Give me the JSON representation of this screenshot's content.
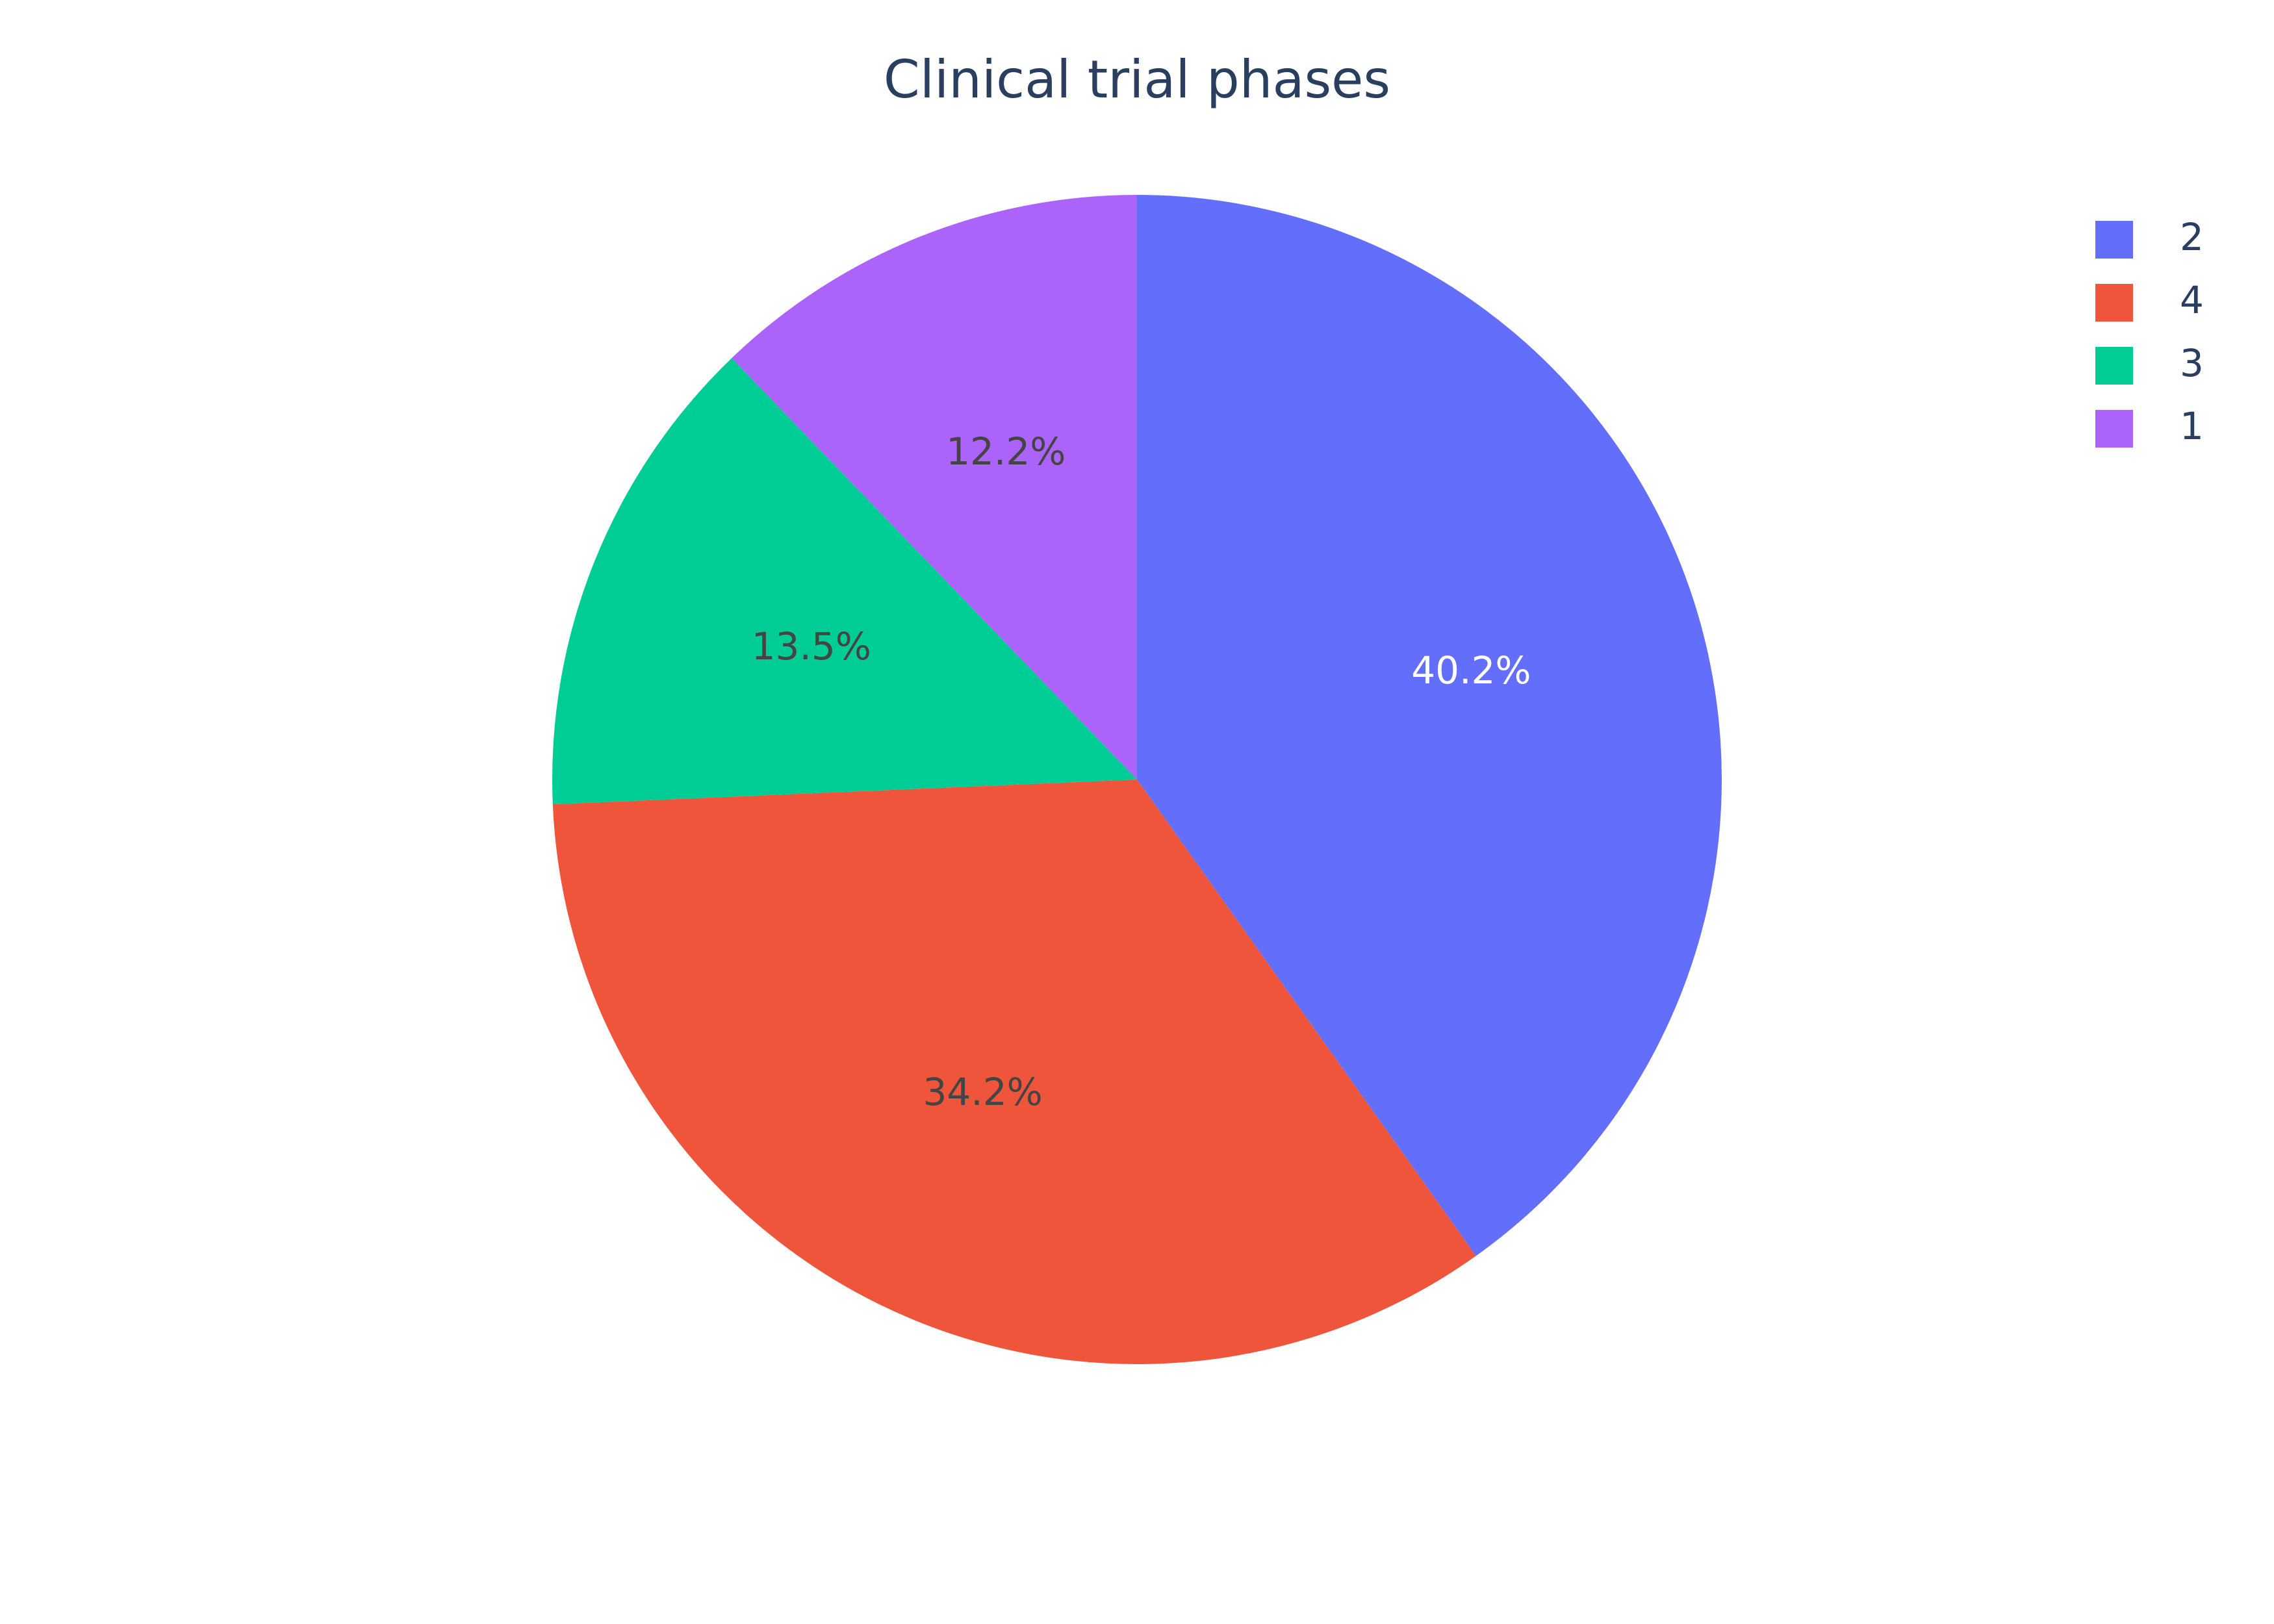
{
  "chart_data": {
    "type": "pie",
    "title": "Clinical trial phases",
    "labels": [
      "2",
      "4",
      "3",
      "1"
    ],
    "values": [
      40.2,
      34.2,
      13.5,
      12.2
    ],
    "text_labels": [
      "40.2%",
      "34.2%",
      "13.5%",
      "12.2%"
    ],
    "colors": [
      "#636efa",
      "#ef553b",
      "#00cc96",
      "#ab63fa"
    ],
    "label_colors": [
      "#ffffff",
      "#444444",
      "#444444",
      "#444444"
    ],
    "direction": "clockwise",
    "start_angle_deg": 90,
    "legend_placement": "top-right"
  }
}
